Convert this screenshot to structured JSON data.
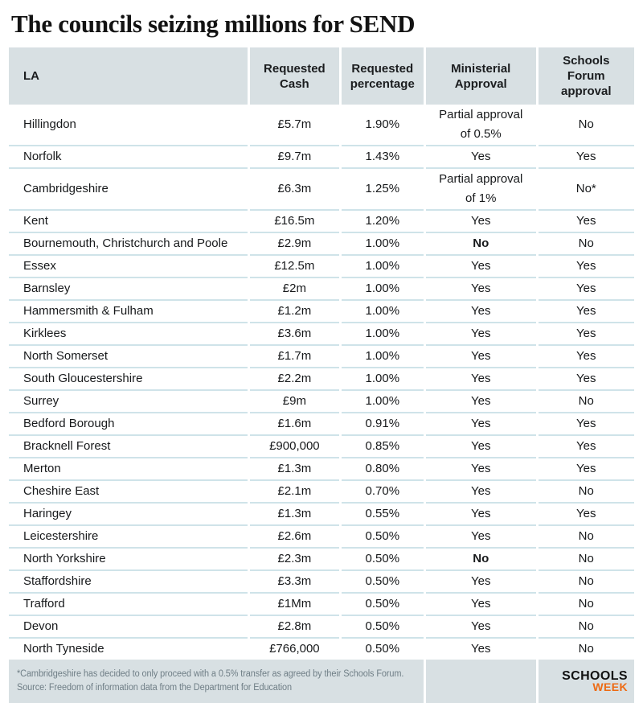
{
  "title": "The councils seizing millions for SEND",
  "chart_data": {
    "type": "table",
    "title": "The councils seizing millions for SEND",
    "columns": [
      "LA",
      "Requested Cash",
      "Requested percentage",
      "Ministerial Approval",
      "Schools Forum approval"
    ],
    "rows": [
      {
        "la": "Hillingdon",
        "cash": "£5.7m",
        "pct": "1.90%",
        "ministerial": "Partial approval of 0.5%",
        "forum": "No"
      },
      {
        "la": "Norfolk",
        "cash": "£9.7m",
        "pct": "1.43%",
        "ministerial": "Yes",
        "forum": "Yes"
      },
      {
        "la": "Cambridgeshire",
        "cash": "£6.3m",
        "pct": "1.25%",
        "ministerial": "Partial approval of 1%",
        "forum": "No*"
      },
      {
        "la": "Kent",
        "cash": "£16.5m",
        "pct": "1.20%",
        "ministerial": "Yes",
        "forum": "Yes"
      },
      {
        "la": "Bournemouth, Christchurch and Poole",
        "cash": "£2.9m",
        "pct": "1.00%",
        "ministerial": "No",
        "ministerial_bold": true,
        "forum": "No"
      },
      {
        "la": "Essex",
        "cash": "£12.5m",
        "pct": "1.00%",
        "ministerial": "Yes",
        "forum": "Yes"
      },
      {
        "la": "Barnsley",
        "cash": "£2m",
        "pct": "1.00%",
        "ministerial": "Yes",
        "forum": "Yes"
      },
      {
        "la": "Hammersmith & Fulham",
        "cash": "£1.2m",
        "pct": "1.00%",
        "ministerial": "Yes",
        "forum": "Yes"
      },
      {
        "la": "Kirklees",
        "cash": "£3.6m",
        "pct": "1.00%",
        "ministerial": "Yes",
        "forum": "Yes"
      },
      {
        "la": "North Somerset",
        "cash": "£1.7m",
        "pct": "1.00%",
        "ministerial": "Yes",
        "forum": "Yes"
      },
      {
        "la": "South Gloucestershire",
        "cash": "£2.2m",
        "pct": "1.00%",
        "ministerial": "Yes",
        "forum": "Yes"
      },
      {
        "la": "Surrey",
        "cash": "£9m",
        "pct": "1.00%",
        "ministerial": "Yes",
        "forum": "No"
      },
      {
        "la": "Bedford Borough",
        "cash": "£1.6m",
        "pct": "0.91%",
        "ministerial": "Yes",
        "forum": "Yes"
      },
      {
        "la": "Bracknell Forest",
        "cash": "£900,000",
        "pct": "0.85%",
        "ministerial": "Yes",
        "forum": "Yes"
      },
      {
        "la": "Merton",
        "cash": "£1.3m",
        "pct": "0.80%",
        "ministerial": "Yes",
        "forum": "Yes"
      },
      {
        "la": "Cheshire East",
        "cash": "£2.1m",
        "pct": "0.70%",
        "ministerial": "Yes",
        "forum": "No"
      },
      {
        "la": "Haringey",
        "cash": "£1.3m",
        "pct": "0.55%",
        "ministerial": "Yes",
        "forum": "Yes"
      },
      {
        "la": "Leicestershire",
        "cash": "£2.6m",
        "pct": "0.50%",
        "ministerial": "Yes",
        "forum": "No"
      },
      {
        "la": "North Yorkshire",
        "cash": "£2.3m",
        "pct": "0.50%",
        "ministerial": "No",
        "ministerial_bold": true,
        "forum": "No"
      },
      {
        "la": "Staffordshire",
        "cash": "£3.3m",
        "pct": "0.50%",
        "ministerial": "Yes",
        "forum": "No"
      },
      {
        "la": "Trafford",
        "cash": "£1Mm",
        "pct": "0.50%",
        "ministerial": "Yes",
        "forum": "No"
      },
      {
        "la": "Devon",
        "cash": "£2.8m",
        "pct": "0.50%",
        "ministerial": "Yes",
        "forum": "No"
      },
      {
        "la": "North Tyneside",
        "cash": "£766,000",
        "pct": "0.50%",
        "ministerial": "Yes",
        "forum": "No"
      }
    ],
    "footnote": "*Cambridgeshire has decided to only proceed with a 0.5% transfer as agreed by their Schools Forum.",
    "source": "Source: Freedom of information data from the Department for Education"
  },
  "footer": {
    "note": "*Cambridgeshire has decided to only proceed with a 0.5% transfer as agreed by their Schools Forum.",
    "source": "Source: Freedom of information data from the Department for Education",
    "logo_top": "SCHOOLS",
    "logo_bottom": "WEEK"
  },
  "colors": {
    "header_bg": "#d8e0e3",
    "row_divider": "#cfe3e9",
    "footnote_text": "#6f7e86",
    "logo_week_orange": "#ed6a13",
    "logo_schools_black": "#121212"
  }
}
